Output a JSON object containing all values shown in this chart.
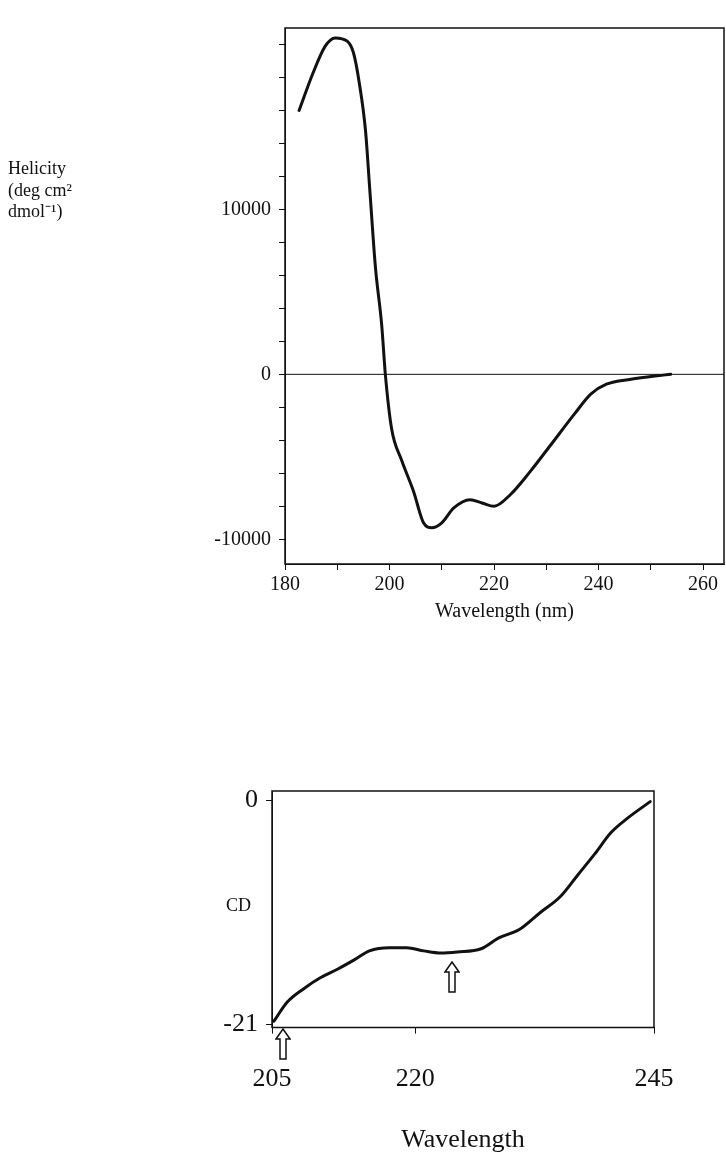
{
  "chart_data": [
    {
      "type": "line",
      "xlabel": "Wavelength (nm)",
      "ylabel": "Helicity (deg cm² dmol⁻¹)",
      "color": "#111111",
      "marker": "none",
      "line_style": "solid",
      "grid": false,
      "legend": false,
      "xlim": [
        180,
        264
      ],
      "xticks": [
        180,
        {
          "value": 190,
          "label": null
        },
        200,
        {
          "value": 210,
          "label": null
        },
        220,
        {
          "value": 230,
          "label": null
        },
        240,
        {
          "value": 250,
          "label": null
        },
        260
      ],
      "ylim": [
        -11500,
        21000
      ],
      "yticks": [
        -10000,
        {
          "value": -8000,
          "label": null
        },
        {
          "value": -6000,
          "label": null
        },
        {
          "value": -4000,
          "label": null
        },
        {
          "value": -2000,
          "label": null
        },
        0,
        {
          "value": 2000,
          "label": null
        },
        {
          "value": 4000,
          "label": null
        },
        {
          "value": 6000,
          "label": null
        },
        {
          "value": 8000,
          "label": null
        },
        10000,
        {
          "value": 12000,
          "label": null
        },
        {
          "value": 14000,
          "label": null
        },
        {
          "value": 16000,
          "label": null
        },
        {
          "value": 18000,
          "label": null
        },
        {
          "value": 20000,
          "label": null
        }
      ],
      "ref_lines": [
        {
          "axis": "y",
          "value": 0,
          "color": "#111111"
        }
      ],
      "x": [
        182.7,
        185.4,
        187.7,
        189.6,
        191.9,
        193.1,
        194.2,
        195.4,
        196.2,
        197.3,
        198.5,
        199.2,
        200.4,
        202.3,
        204.6,
        206.5,
        208.1,
        210,
        212.3,
        215.4,
        217.7,
        220,
        223.1,
        226.9,
        230.8,
        235.4,
        238.5,
        241.5,
        246.2,
        250.8,
        253.8
      ],
      "values": [
        16000,
        18300,
        19900,
        20400,
        20200,
        19500,
        17700,
        14800,
        11300,
        6500,
        3000,
        0,
        -3300,
        -5200,
        -7100,
        -9000,
        -9300,
        -9000,
        -8100,
        -7600,
        -7800,
        -8000,
        -7300,
        -5900,
        -4300,
        -2400,
        -1200,
        -600,
        -300,
        -100,
        0
      ]
    },
    {
      "type": "line",
      "xlabel": "Wavelength",
      "ylabel": "CD",
      "color": "#111111",
      "marker": "none",
      "line_style": "solid",
      "grid": false,
      "legend": false,
      "xlim": [
        205,
        245
      ],
      "xticks": [
        205,
        220,
        245
      ],
      "ylim": [
        -21.3,
        0.9
      ],
      "yticks": [
        -21,
        0
      ],
      "x": [
        205.2,
        206.6,
        208.4,
        210.1,
        211.9,
        213.7,
        215.2,
        217.3,
        219.1,
        220.9,
        222.7,
        224.4,
        226.9,
        228.7,
        230.9,
        233.1,
        235.2,
        237,
        238.8,
        240.5,
        242.3,
        244.6
      ],
      "values": [
        -20.7,
        -18.9,
        -17.6,
        -16.6,
        -15.8,
        -14.9,
        -14.1,
        -13.8,
        -13.8,
        -14.1,
        -14.3,
        -14.2,
        -13.9,
        -12.9,
        -12.1,
        -10.5,
        -9,
        -7,
        -5,
        -3,
        -1.6,
        -0.1
      ]
    }
  ]
}
